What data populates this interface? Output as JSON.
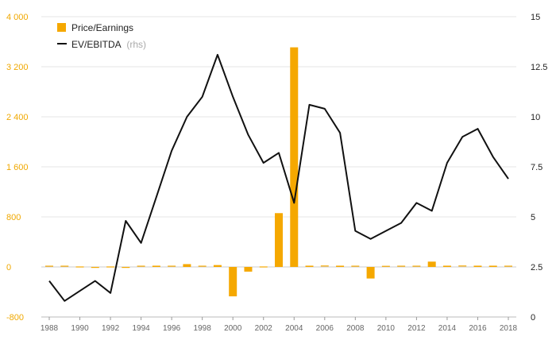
{
  "chart_data": {
    "type": "bar+line",
    "title": "",
    "legend": {
      "position": "top-left",
      "items": [
        {
          "label": "Price/Earnings",
          "suffix": "",
          "marker": "bar"
        },
        {
          "label": "EV/EBITDA",
          "suffix": "(rhs)",
          "marker": "line"
        }
      ]
    },
    "x": [
      1988,
      1989,
      1990,
      1991,
      1992,
      1993,
      1994,
      1995,
      1996,
      1997,
      1998,
      1999,
      2000,
      2001,
      2002,
      2003,
      2004,
      2005,
      2006,
      2007,
      2008,
      2009,
      2010,
      2011,
      2012,
      2013,
      2014,
      2015,
      2016,
      2017,
      2018
    ],
    "x_tick_labels": [
      "1988",
      "1990",
      "1992",
      "1994",
      "1996",
      "1998",
      "2000",
      "2002",
      "2004",
      "2006",
      "2008",
      "2010",
      "2012",
      "2014",
      "2016",
      "2018"
    ],
    "left_axis": {
      "ylim": [
        -800,
        4000
      ],
      "tick_labels": [
        "-800",
        "0",
        "800",
        "1 600",
        "2 400",
        "3 200",
        "4 000"
      ],
      "tick_values": [
        -800,
        0,
        800,
        1600,
        2400,
        3200,
        4000
      ]
    },
    "right_axis": {
      "ylim": [
        0,
        15
      ],
      "tick_labels": [
        "0",
        "2.5",
        "5",
        "7.5",
        "10",
        "12.5",
        "15"
      ],
      "tick_values": [
        0,
        2.5,
        5,
        7.5,
        10,
        12.5,
        15
      ]
    },
    "series": [
      {
        "name": "Price/Earnings",
        "type": "bar",
        "axis": "left",
        "color": "#F5A800",
        "values": [
          12,
          12,
          0,
          -12,
          0,
          -15,
          12,
          20,
          12,
          45,
          12,
          30,
          -470,
          -75,
          0,
          860,
          3510,
          20,
          15,
          20,
          12,
          -185,
          10,
          12,
          12,
          85,
          20,
          15,
          20,
          20,
          12
        ]
      },
      {
        "name": "EV/EBITDA",
        "type": "line",
        "axis": "right",
        "color": "#111111",
        "values": [
          1.8,
          0.8,
          1.3,
          1.8,
          1.2,
          4.8,
          3.7,
          6.0,
          8.3,
          10.0,
          11.0,
          13.1,
          11.0,
          9.1,
          7.7,
          8.2,
          5.7,
          10.6,
          10.4,
          9.2,
          4.3,
          3.9,
          4.3,
          4.7,
          5.7,
          5.3,
          7.7,
          9.0,
          9.4,
          8.0,
          6.9
        ]
      }
    ],
    "grid": "horizontal"
  }
}
